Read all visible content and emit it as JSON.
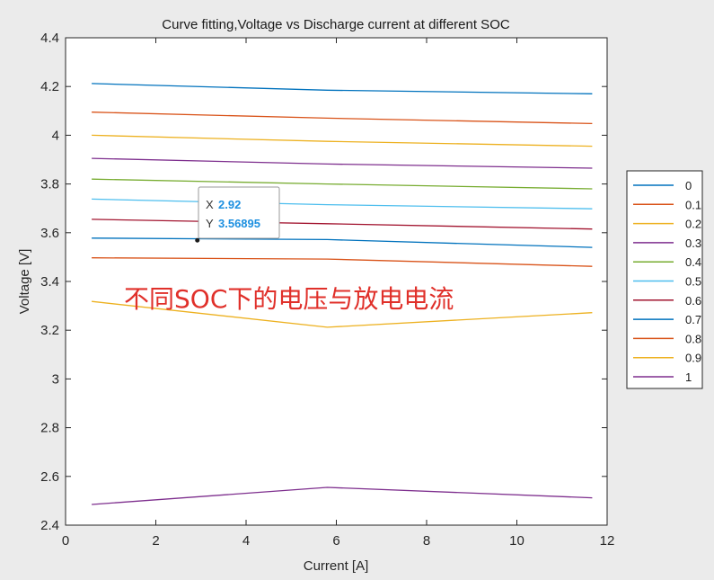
{
  "chart_data": {
    "type": "line",
    "title": "Curve fitting,Voltage vs Discharge current at different SOC",
    "xlabel": "Current [A]",
    "ylabel": "Voltage [V]",
    "xlim": [
      0,
      12
    ],
    "ylim": [
      2.4,
      4.4
    ],
    "xticks": [
      "0",
      "2",
      "4",
      "6",
      "8",
      "10",
      "12"
    ],
    "yticks": [
      "2.4",
      "2.6",
      "2.8",
      "3",
      "3.2",
      "3.4",
      "3.6",
      "3.8",
      "4",
      "4.2",
      "4.4"
    ],
    "grid": false,
    "legend_position": "right",
    "x": [
      0.58,
      5.8,
      11.67
    ],
    "series": [
      {
        "name": "0",
        "color": "#0072bd",
        "values": [
          4.212,
          4.185,
          4.17
        ]
      },
      {
        "name": "0.1",
        "color": "#d95319",
        "values": [
          4.095,
          4.07,
          4.048
        ]
      },
      {
        "name": "0.2",
        "color": "#edb120",
        "values": [
          4.0,
          3.975,
          3.955
        ]
      },
      {
        "name": "0.3",
        "color": "#7e2f8e",
        "values": [
          3.905,
          3.882,
          3.865
        ]
      },
      {
        "name": "0.4",
        "color": "#77ac30",
        "values": [
          3.82,
          3.8,
          3.78
        ]
      },
      {
        "name": "0.5",
        "color": "#4dbeee",
        "values": [
          3.738,
          3.715,
          3.698
        ]
      },
      {
        "name": "0.6",
        "color": "#a2142f",
        "values": [
          3.655,
          3.637,
          3.615
        ]
      },
      {
        "name": "0.7",
        "color": "#0072bd",
        "values": [
          3.578,
          3.572,
          3.54
        ]
      },
      {
        "name": "0.8",
        "color": "#d95319",
        "values": [
          3.497,
          3.492,
          3.462
        ]
      },
      {
        "name": "0.9",
        "color": "#edb120",
        "values": [
          3.318,
          3.212,
          3.272
        ]
      },
      {
        "name": "1",
        "color": "#7e2f8e",
        "values": [
          2.485,
          2.555,
          2.512
        ]
      }
    ],
    "datatip": {
      "x_label": "X",
      "x_value": "2.92",
      "y_label": "Y",
      "y_value": "3.56895",
      "x": 2.92,
      "y": 3.56895
    },
    "annotation": "不同SOC下的电压与放电电流"
  }
}
